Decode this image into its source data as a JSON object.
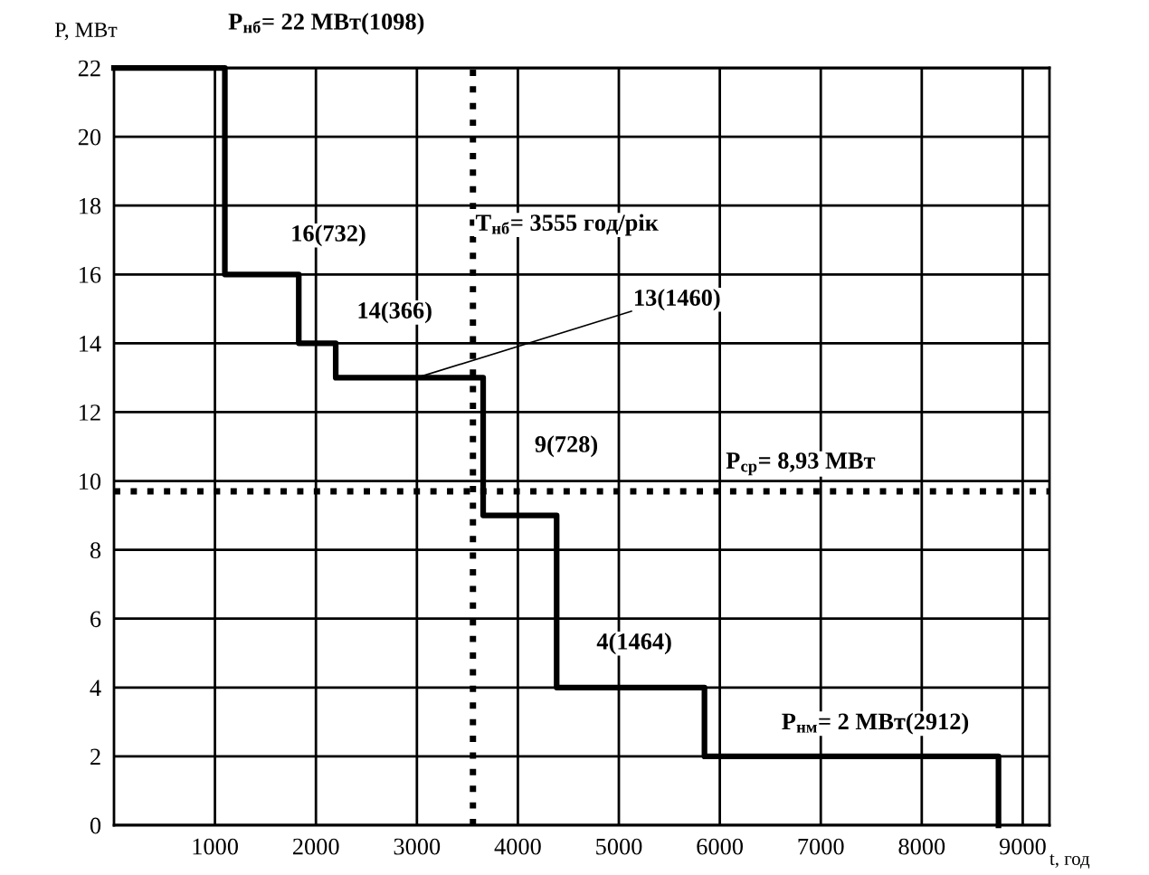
{
  "chart_data": {
    "type": "step",
    "xlabel": "t, год",
    "ylabel": "P, МВт",
    "x": [
      0,
      1098,
      1830,
      2196,
      3656,
      4384,
      5848,
      8760
    ],
    "series": [
      {
        "color": "#000000",
        "values": [
          22,
          16,
          14,
          13,
          9,
          4,
          2,
          0
        ]
      }
    ],
    "xlim": [
      0,
      9265
    ],
    "ylim": [
      0,
      22
    ],
    "xticks": [
      1000,
      2000,
      3000,
      4000,
      5000,
      6000,
      7000,
      8000,
      9000
    ],
    "yticks": [
      0,
      2,
      4,
      6,
      8,
      10,
      12,
      14,
      16,
      18,
      20,
      22
    ],
    "grid": true,
    "line_style": "solid",
    "ref_lines": [
      {
        "axis": "x",
        "value": 3555,
        "label": "T$_{нб}$= 3555 год/рік",
        "color": "#000000",
        "line_style": "dotted"
      },
      {
        "axis": "y",
        "value": 9.7,
        "color": "#000000",
        "line_style": "dotted"
      }
    ],
    "annotations": [
      {
        "text": "P$_{нб}$= 22 МВт(1098)",
        "x": 549,
        "y": 22
      },
      {
        "text": "16(732)",
        "x": 1464,
        "y": 16
      },
      "14(366)",
      {
        "text": "13(1460)",
        "x": 3000,
        "y": 13
      },
      {
        "text": "9(728)",
        "x": 4020,
        "y": 9
      },
      {
        "text": "4(1464)",
        "x": 5116,
        "y": 4
      },
      {
        "text": "P$_{нм}$= 2 МВт(2912)",
        "x": 7304,
        "y": 2
      },
      "P$_{ср}$= 8,93 МВт"
    ]
  }
}
